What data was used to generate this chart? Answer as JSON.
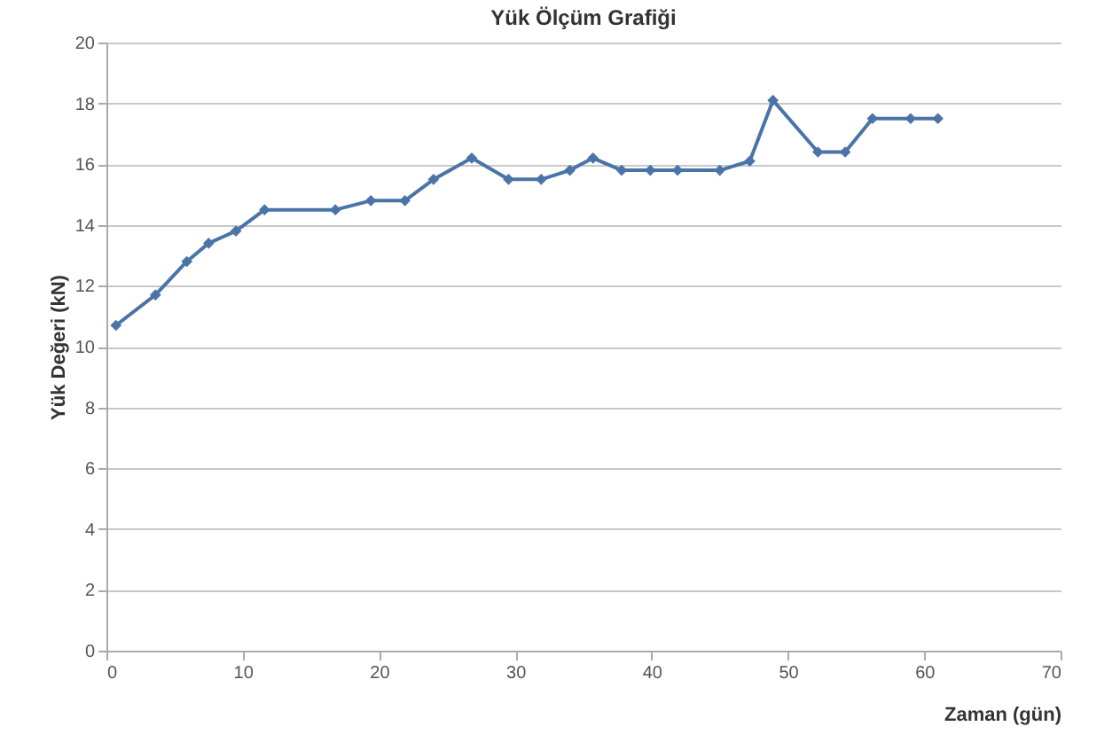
{
  "chart_data": {
    "type": "line",
    "title": "Yük Ölçüm Grafiği",
    "xlabel": "Zaman (gün)",
    "ylabel": "Yük Değeri (kN)",
    "x": [
      0.7,
      3.6,
      5.9,
      7.5,
      9.5,
      11.6,
      16.8,
      19.4,
      21.9,
      24,
      26.8,
      29.5,
      31.9,
      34,
      35.7,
      37.8,
      39.9,
      41.9,
      45,
      47.2,
      48.9,
      52.2,
      54.2,
      56.2,
      59,
      61
    ],
    "series": [
      {
        "color": "#4a74a8",
        "values": [
          10.7,
          11.7,
          12.8,
          13.4,
          13.8,
          14.5,
          14.5,
          14.8,
          14.8,
          15.5,
          16.2,
          15.5,
          15.5,
          15.8,
          16.2,
          15.8,
          15.8,
          15.8,
          15.8,
          16.1,
          18.1,
          16.4,
          16.4,
          17.5,
          17.5,
          17.5
        ]
      }
    ],
    "xlim": [
      0,
      70
    ],
    "xticks": [
      0,
      10,
      20,
      30,
      40,
      50,
      60,
      70
    ],
    "ylim": [
      0,
      20
    ],
    "yticks": [
      0,
      2,
      4,
      6,
      8,
      10,
      12,
      14,
      16,
      18,
      20
    ],
    "grid": "y",
    "marker": "diamond",
    "line_style": "solid"
  }
}
